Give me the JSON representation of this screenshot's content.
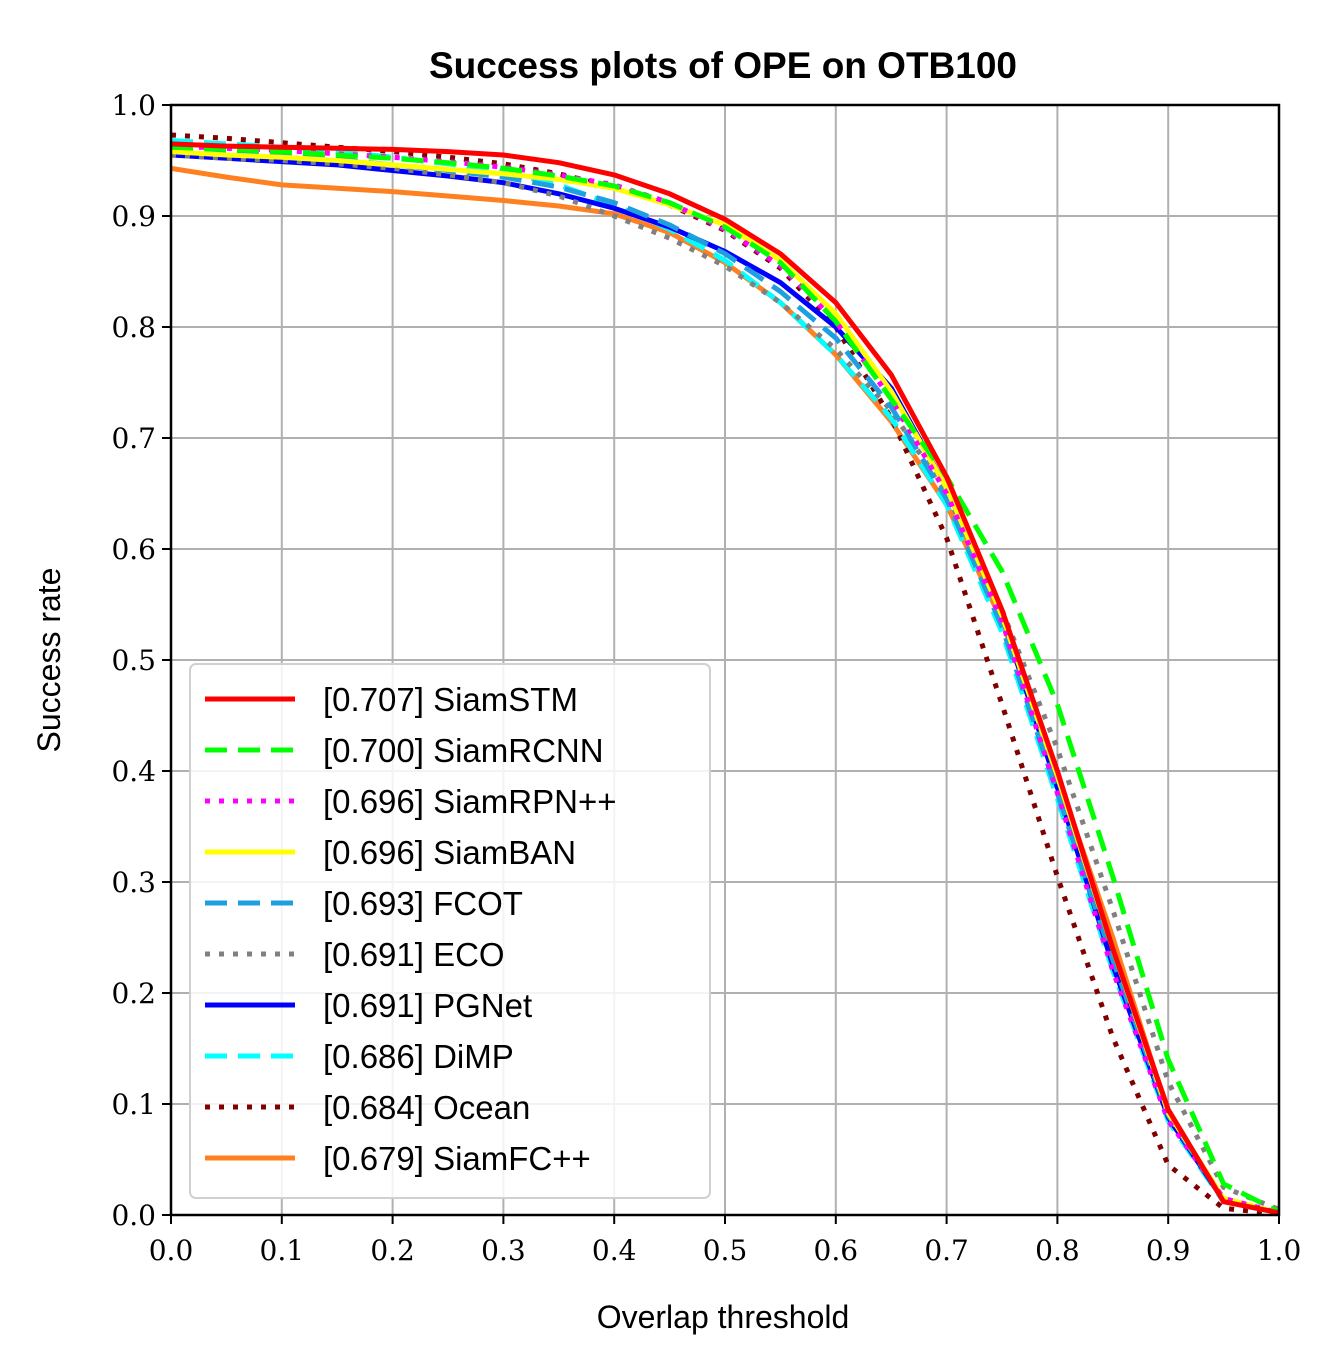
{
  "chart_data": {
    "type": "line",
    "title": "Success plots of OPE on OTB100",
    "xlabel": "Overlap threshold",
    "ylabel": "Success rate",
    "xlim": [
      0.0,
      1.0
    ],
    "ylim": [
      0.0,
      1.0
    ],
    "grid": true,
    "legend_position": "lower-left",
    "x_ticks": [
      "0.0",
      "0.1",
      "0.2",
      "0.3",
      "0.4",
      "0.5",
      "0.6",
      "0.7",
      "0.8",
      "0.9",
      "1.0"
    ],
    "y_ticks": [
      "0.0",
      "0.1",
      "0.2",
      "0.3",
      "0.4",
      "0.5",
      "0.6",
      "0.7",
      "0.8",
      "0.9",
      "1.0"
    ],
    "x": [
      0.0,
      0.05,
      0.1,
      0.15,
      0.2,
      0.25,
      0.3,
      0.35,
      0.4,
      0.45,
      0.5,
      0.55,
      0.6,
      0.65,
      0.7,
      0.75,
      0.8,
      0.85,
      0.9,
      0.95,
      1.0
    ],
    "series": [
      {
        "name": "SiamSTM",
        "label": "[0.707] SiamSTM",
        "color": "#ff0000",
        "style": "solid",
        "values": [
          0.965,
          0.963,
          0.962,
          0.961,
          0.96,
          0.958,
          0.955,
          0.948,
          0.937,
          0.92,
          0.897,
          0.866,
          0.822,
          0.757,
          0.665,
          0.545,
          0.4,
          0.24,
          0.095,
          0.012,
          0.002
        ]
      },
      {
        "name": "SiamRCNN",
        "label": "[0.700] SiamRCNN",
        "color": "#00ff00",
        "style": "dashed",
        "values": [
          0.962,
          0.96,
          0.958,
          0.955,
          0.952,
          0.948,
          0.943,
          0.936,
          0.927,
          0.912,
          0.89,
          0.858,
          0.805,
          0.735,
          0.665,
          0.58,
          0.46,
          0.305,
          0.14,
          0.028,
          0.003
        ]
      },
      {
        "name": "SiamRPN++",
        "label": "[0.696] SiamRPN++",
        "color": "#ff00ff",
        "style": "dotted",
        "values": [
          0.963,
          0.961,
          0.959,
          0.956,
          0.953,
          0.949,
          0.944,
          0.937,
          0.928,
          0.912,
          0.888,
          0.855,
          0.805,
          0.735,
          0.65,
          0.535,
          0.38,
          0.22,
          0.085,
          0.015,
          0.002
        ]
      },
      {
        "name": "SiamBAN",
        "label": "[0.696] SiamBAN",
        "color": "#ffff00",
        "style": "solid",
        "values": [
          0.958,
          0.955,
          0.953,
          0.95,
          0.946,
          0.942,
          0.938,
          0.933,
          0.925,
          0.91,
          0.892,
          0.86,
          0.812,
          0.742,
          0.655,
          0.54,
          0.395,
          0.24,
          0.092,
          0.015,
          0.002
        ]
      },
      {
        "name": "FCOT",
        "label": "[0.693] FCOT",
        "color": "#1f9fe0",
        "style": "dashed",
        "values": [
          0.96,
          0.958,
          0.955,
          0.951,
          0.946,
          0.941,
          0.935,
          0.926,
          0.912,
          0.892,
          0.866,
          0.832,
          0.79,
          0.728,
          0.645,
          0.53,
          0.38,
          0.23,
          0.09,
          0.014,
          0.002
        ]
      },
      {
        "name": "ECO",
        "label": "[0.691] ECO",
        "color": "#808080",
        "style": "dotted",
        "values": [
          0.955,
          0.952,
          0.95,
          0.947,
          0.943,
          0.937,
          0.93,
          0.918,
          0.9,
          0.88,
          0.855,
          0.822,
          0.78,
          0.725,
          0.65,
          0.545,
          0.42,
          0.275,
          0.12,
          0.025,
          0.005
        ]
      },
      {
        "name": "PGNet",
        "label": "[0.691] PGNet",
        "color": "#0000ff",
        "style": "solid",
        "values": [
          0.955,
          0.952,
          0.949,
          0.946,
          0.941,
          0.936,
          0.93,
          0.92,
          0.907,
          0.89,
          0.868,
          0.84,
          0.8,
          0.745,
          0.655,
          0.54,
          0.385,
          0.225,
          0.088,
          0.013,
          0.002
        ]
      },
      {
        "name": "DiMP",
        "label": "[0.686] DiMP",
        "color": "#00ffff",
        "style": "dashed",
        "values": [
          0.968,
          0.965,
          0.962,
          0.958,
          0.953,
          0.947,
          0.94,
          0.928,
          0.91,
          0.888,
          0.86,
          0.822,
          0.775,
          0.718,
          0.64,
          0.525,
          0.375,
          0.22,
          0.085,
          0.012,
          0.002
        ]
      },
      {
        "name": "Ocean",
        "label": "[0.684] Ocean",
        "color": "#800000",
        "style": "dotted",
        "values": [
          0.973,
          0.97,
          0.966,
          0.962,
          0.958,
          0.953,
          0.947,
          0.938,
          0.926,
          0.91,
          0.887,
          0.853,
          0.8,
          0.718,
          0.61,
          0.46,
          0.305,
          0.16,
          0.045,
          0.006,
          0.001
        ]
      },
      {
        "name": "SiamFC++",
        "label": "[0.679] SiamFC++",
        "color": "#ff8020",
        "style": "solid",
        "values": [
          0.943,
          0.935,
          0.928,
          0.925,
          0.922,
          0.918,
          0.914,
          0.909,
          0.902,
          0.885,
          0.858,
          0.822,
          0.775,
          0.715,
          0.64,
          0.535,
          0.395,
          0.25,
          0.092,
          0.013,
          0.002
        ]
      }
    ]
  }
}
